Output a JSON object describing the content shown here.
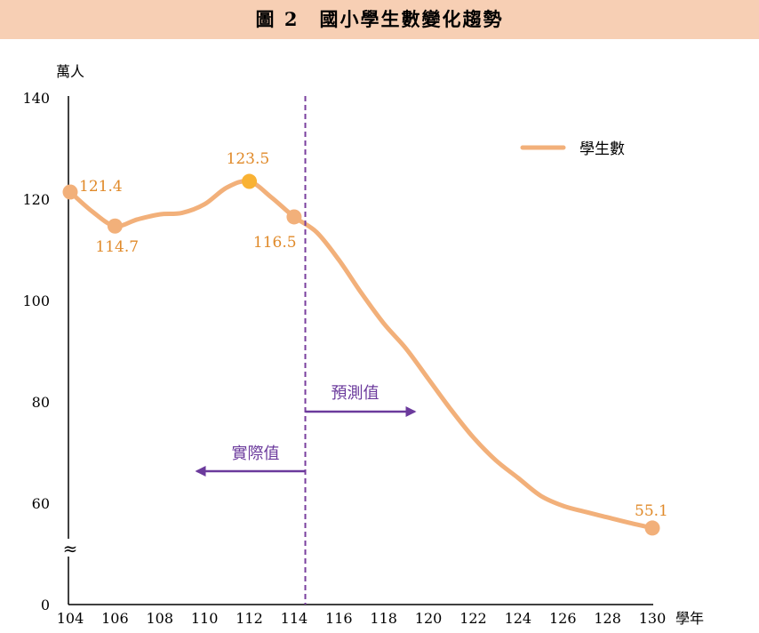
{
  "title": "圖 2　國小學生數變化趨勢",
  "colors": {
    "series": "#f2b07a",
    "label": "#e08a2a",
    "peak": "#f9b233",
    "divider": "#7a3f9e",
    "header": "#f7cfb4"
  },
  "chart_data": {
    "type": "line",
    "ylabel": "萬人",
    "xlabel": "學年",
    "ylim": [
      0,
      140
    ],
    "xlim": [
      104,
      130
    ],
    "y_ticks": [
      "0",
      "60",
      "80",
      "100",
      "120",
      "140"
    ],
    "x_ticks": [
      "104",
      "106",
      "108",
      "110",
      "112",
      "114",
      "116",
      "118",
      "120",
      "122",
      "124",
      "126",
      "128",
      "130"
    ],
    "axis_break_symbol": "≈",
    "grid": false,
    "legend_position": "top-right",
    "series": [
      {
        "name": "學生數",
        "x": [
          104,
          105,
          106,
          107,
          108,
          109,
          110,
          111,
          112,
          113,
          114,
          115,
          116,
          117,
          118,
          119,
          120,
          121,
          122,
          123,
          124,
          125,
          126,
          127,
          128,
          129,
          130
        ],
        "values": [
          121.4,
          117.5,
          114.7,
          116.0,
          117.0,
          117.3,
          119.0,
          122.3,
          123.5,
          120.3,
          116.5,
          113.5,
          108.0,
          101.5,
          95.5,
          90.5,
          84.5,
          78.5,
          73.0,
          68.5,
          65.0,
          61.5,
          59.5,
          58.3,
          57.2,
          56.1,
          55.1
        ]
      }
    ],
    "data_labels": [
      {
        "x": 104,
        "y": 121.4,
        "text": "121.4"
      },
      {
        "x": 106,
        "y": 114.7,
        "text": "114.7"
      },
      {
        "x": 112,
        "y": 123.5,
        "text": "123.5"
      },
      {
        "x": 114,
        "y": 116.5,
        "text": "116.5"
      },
      {
        "x": 130,
        "y": 55.1,
        "text": "55.1"
      }
    ],
    "annotations": {
      "divider_x": 114.5,
      "actual_label": "實際值",
      "forecast_label": "預測值"
    }
  }
}
